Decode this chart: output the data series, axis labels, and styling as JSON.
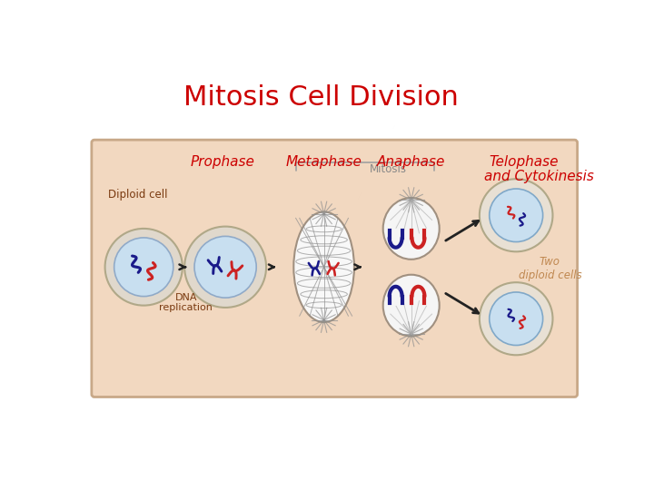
{
  "title": "Mitosis Cell Division",
  "title_color": "#cc0000",
  "title_fontsize": 22,
  "bg_color": "#ffffff",
  "panel_bg": "#f2d8c0",
  "panel_border": "#c8a888",
  "label_prophase": "Prophase",
  "label_metaphase": "Metaphase",
  "label_mitosis": "Mitosis",
  "label_anaphase": "Anaphase",
  "label_telophase": "Telophase",
  "label_cytokinesis": "and Cytokinesis",
  "label_diploid": "Diploid cell",
  "label_dna": "DNA\nreplication",
  "label_two_diploid": "Two\ndiploid cells",
  "label_color_red": "#cc0000",
  "label_color_dark": "#7a3a10",
  "label_color_tan": "#c08850",
  "cell_outer_color": "#e8ddd0",
  "cell_inner_color": "#d0e8f0",
  "cell_white": "#f5f5f5",
  "chrom_blue": "#1a1a8a",
  "chrom_red": "#cc2222",
  "arrow_color": "#222222",
  "spindle_color": "#a0a0a0"
}
